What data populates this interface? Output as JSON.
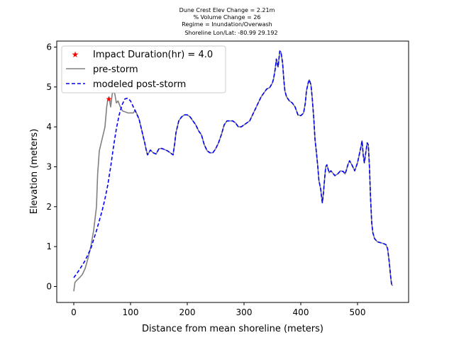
{
  "chart_data": {
    "type": "line",
    "title_lines": [
      "Dune Crest Elev Change = 2.21m",
      "% Volume Change = 26",
      "Regime = Inundation/Overwash",
      "Shoreline Lon/Lat: -80.99 29.192"
    ],
    "xlabel": "Distance from mean shoreline (meters)",
    "ylabel": "Elevation (meters)",
    "xlim": [
      -30,
      590
    ],
    "ylim": [
      -0.4,
      6.15
    ],
    "xticks": [
      0,
      100,
      200,
      300,
      400,
      500
    ],
    "yticks": [
      0,
      1,
      2,
      3,
      4,
      5,
      6
    ],
    "grid": false,
    "legend_position": "top-left",
    "marker": {
      "name": "Impact Duration(hr) = 4.0",
      "x": 62,
      "y": 4.7,
      "color": "#ff0000",
      "symbol": "star"
    },
    "series": [
      {
        "name": "pre-storm",
        "color": "#808080",
        "style": "solid",
        "points": [
          [
            0,
            -0.12
          ],
          [
            2,
            0.1
          ],
          [
            5,
            0.15
          ],
          [
            10,
            0.22
          ],
          [
            15,
            0.3
          ],
          [
            20,
            0.45
          ],
          [
            25,
            0.7
          ],
          [
            30,
            1.0
          ],
          [
            35,
            1.4
          ],
          [
            40,
            2.0
          ],
          [
            42,
            2.8
          ],
          [
            45,
            3.4
          ],
          [
            50,
            3.7
          ],
          [
            55,
            4.0
          ],
          [
            58,
            4.5
          ],
          [
            60,
            4.68
          ],
          [
            62,
            4.75
          ],
          [
            65,
            4.5
          ],
          [
            68,
            4.85
          ],
          [
            72,
            4.85
          ],
          [
            75,
            4.6
          ],
          [
            78,
            4.65
          ],
          [
            82,
            4.5
          ],
          [
            86,
            4.4
          ],
          [
            90,
            4.38
          ],
          [
            95,
            4.35
          ],
          [
            100,
            4.35
          ],
          [
            105,
            4.35
          ],
          [
            108,
            4.42
          ],
          [
            112,
            4.3
          ],
          [
            115,
            4.2
          ],
          [
            120,
            3.9
          ],
          [
            125,
            3.6
          ],
          [
            128,
            3.4
          ],
          [
            130,
            3.3
          ],
          [
            135,
            3.42
          ],
          [
            140,
            3.35
          ],
          [
            145,
            3.32
          ],
          [
            150,
            3.45
          ],
          [
            155,
            3.46
          ],
          [
            160,
            3.43
          ],
          [
            165,
            3.4
          ],
          [
            170,
            3.35
          ],
          [
            175,
            3.3
          ],
          [
            178,
            3.6
          ],
          [
            180,
            3.85
          ],
          [
            185,
            4.15
          ],
          [
            190,
            4.25
          ],
          [
            195,
            4.3
          ],
          [
            200,
            4.3
          ],
          [
            205,
            4.25
          ],
          [
            210,
            4.15
          ],
          [
            215,
            4.05
          ],
          [
            220,
            3.9
          ],
          [
            225,
            3.8
          ],
          [
            230,
            3.55
          ],
          [
            235,
            3.4
          ],
          [
            240,
            3.35
          ],
          [
            245,
            3.35
          ],
          [
            250,
            3.45
          ],
          [
            255,
            3.6
          ],
          [
            260,
            3.8
          ],
          [
            265,
            4.05
          ],
          [
            270,
            4.15
          ],
          [
            275,
            4.15
          ],
          [
            280,
            4.15
          ],
          [
            285,
            4.1
          ],
          [
            290,
            4.0
          ],
          [
            295,
            4.0
          ],
          [
            300,
            4.05
          ],
          [
            305,
            4.1
          ],
          [
            310,
            4.15
          ],
          [
            315,
            4.3
          ],
          [
            320,
            4.45
          ],
          [
            325,
            4.6
          ],
          [
            330,
            4.75
          ],
          [
            335,
            4.85
          ],
          [
            340,
            4.95
          ],
          [
            345,
            4.98
          ],
          [
            350,
            5.1
          ],
          [
            352,
            5.2
          ],
          [
            355,
            5.45
          ],
          [
            357,
            5.7
          ],
          [
            360,
            5.5
          ],
          [
            363,
            5.9
          ],
          [
            365,
            5.88
          ],
          [
            368,
            5.6
          ],
          [
            370,
            5.2
          ],
          [
            372,
            4.9
          ],
          [
            375,
            4.75
          ],
          [
            380,
            4.65
          ],
          [
            385,
            4.6
          ],
          [
            390,
            4.5
          ],
          [
            393,
            4.38
          ],
          [
            395,
            4.3
          ],
          [
            400,
            4.28
          ],
          [
            403,
            4.32
          ],
          [
            405,
            4.35
          ],
          [
            408,
            4.6
          ],
          [
            410,
            4.9
          ],
          [
            413,
            5.1
          ],
          [
            415,
            5.18
          ],
          [
            418,
            5.05
          ],
          [
            420,
            4.75
          ],
          [
            423,
            4.2
          ],
          [
            425,
            3.7
          ],
          [
            428,
            3.3
          ],
          [
            430,
            3.0
          ],
          [
            432,
            2.65
          ],
          [
            435,
            2.45
          ],
          [
            437,
            2.2
          ],
          [
            438,
            2.1
          ],
          [
            440,
            2.35
          ],
          [
            442,
            2.7
          ],
          [
            444,
            3.0
          ],
          [
            446,
            3.05
          ],
          [
            448,
            2.95
          ],
          [
            450,
            2.85
          ],
          [
            453,
            2.9
          ],
          [
            456,
            2.85
          ],
          [
            460,
            2.78
          ],
          [
            465,
            2.82
          ],
          [
            470,
            2.9
          ],
          [
            475,
            2.88
          ],
          [
            478,
            2.82
          ],
          [
            480,
            2.9
          ],
          [
            483,
            3.05
          ],
          [
            486,
            3.15
          ],
          [
            490,
            3.05
          ],
          [
            495,
            2.9
          ],
          [
            500,
            3.1
          ],
          [
            503,
            3.3
          ],
          [
            506,
            3.5
          ],
          [
            508,
            3.65
          ],
          [
            510,
            3.3
          ],
          [
            512,
            3.1
          ],
          [
            515,
            3.4
          ],
          [
            517,
            3.6
          ],
          [
            519,
            3.55
          ],
          [
            521,
            3.0
          ],
          [
            523,
            2.2
          ],
          [
            525,
            1.6
          ],
          [
            527,
            1.35
          ],
          [
            530,
            1.2
          ],
          [
            535,
            1.12
          ],
          [
            540,
            1.1
          ],
          [
            545,
            1.08
          ],
          [
            550,
            1.05
          ],
          [
            553,
            0.95
          ],
          [
            556,
            0.6
          ],
          [
            558,
            0.3
          ],
          [
            560,
            0.05
          ],
          [
            562,
            0.02
          ]
        ]
      },
      {
        "name": "modeled post-storm",
        "color": "#0000ff",
        "style": "dashed",
        "points": [
          [
            0,
            0.22
          ],
          [
            10,
            0.42
          ],
          [
            20,
            0.65
          ],
          [
            30,
            0.95
          ],
          [
            40,
            1.4
          ],
          [
            50,
            1.9
          ],
          [
            55,
            2.2
          ],
          [
            60,
            2.55
          ],
          [
            65,
            3.0
          ],
          [
            70,
            3.5
          ],
          [
            75,
            3.95
          ],
          [
            80,
            4.3
          ],
          [
            85,
            4.55
          ],
          [
            90,
            4.7
          ],
          [
            95,
            4.72
          ],
          [
            100,
            4.65
          ],
          [
            105,
            4.5
          ],
          [
            110,
            4.35
          ],
          [
            115,
            4.2
          ],
          [
            120,
            3.9
          ],
          [
            125,
            3.6
          ],
          [
            128,
            3.4
          ],
          [
            130,
            3.3
          ],
          [
            135,
            3.42
          ],
          [
            140,
            3.35
          ],
          [
            145,
            3.32
          ],
          [
            150,
            3.45
          ],
          [
            155,
            3.46
          ],
          [
            160,
            3.43
          ],
          [
            165,
            3.4
          ],
          [
            170,
            3.35
          ],
          [
            175,
            3.3
          ],
          [
            178,
            3.6
          ],
          [
            180,
            3.85
          ],
          [
            185,
            4.15
          ],
          [
            190,
            4.25
          ],
          [
            195,
            4.3
          ],
          [
            200,
            4.3
          ],
          [
            205,
            4.25
          ],
          [
            210,
            4.15
          ],
          [
            215,
            4.05
          ],
          [
            220,
            3.9
          ],
          [
            225,
            3.8
          ],
          [
            230,
            3.55
          ],
          [
            235,
            3.4
          ],
          [
            240,
            3.35
          ],
          [
            245,
            3.35
          ],
          [
            250,
            3.45
          ],
          [
            255,
            3.6
          ],
          [
            260,
            3.8
          ],
          [
            265,
            4.05
          ],
          [
            270,
            4.15
          ],
          [
            275,
            4.15
          ],
          [
            280,
            4.15
          ],
          [
            285,
            4.1
          ],
          [
            290,
            4.0
          ],
          [
            295,
            4.0
          ],
          [
            300,
            4.05
          ],
          [
            305,
            4.1
          ],
          [
            310,
            4.15
          ],
          [
            315,
            4.3
          ],
          [
            320,
            4.45
          ],
          [
            325,
            4.6
          ],
          [
            330,
            4.75
          ],
          [
            335,
            4.85
          ],
          [
            340,
            4.95
          ],
          [
            345,
            4.98
          ],
          [
            350,
            5.1
          ],
          [
            352,
            5.2
          ],
          [
            355,
            5.45
          ],
          [
            357,
            5.7
          ],
          [
            360,
            5.5
          ],
          [
            363,
            5.9
          ],
          [
            365,
            5.88
          ],
          [
            368,
            5.6
          ],
          [
            370,
            5.2
          ],
          [
            372,
            4.9
          ],
          [
            375,
            4.75
          ],
          [
            380,
            4.65
          ],
          [
            385,
            4.6
          ],
          [
            390,
            4.5
          ],
          [
            393,
            4.38
          ],
          [
            395,
            4.3
          ],
          [
            400,
            4.28
          ],
          [
            403,
            4.32
          ],
          [
            405,
            4.35
          ],
          [
            408,
            4.6
          ],
          [
            410,
            4.9
          ],
          [
            413,
            5.1
          ],
          [
            415,
            5.18
          ],
          [
            418,
            5.05
          ],
          [
            420,
            4.75
          ],
          [
            423,
            4.2
          ],
          [
            425,
            3.7
          ],
          [
            428,
            3.3
          ],
          [
            430,
            3.0
          ],
          [
            432,
            2.65
          ],
          [
            435,
            2.45
          ],
          [
            437,
            2.2
          ],
          [
            438,
            2.1
          ],
          [
            440,
            2.35
          ],
          [
            442,
            2.7
          ],
          [
            444,
            3.0
          ],
          [
            446,
            3.05
          ],
          [
            448,
            2.95
          ],
          [
            450,
            2.85
          ],
          [
            453,
            2.9
          ],
          [
            456,
            2.85
          ],
          [
            460,
            2.78
          ],
          [
            465,
            2.82
          ],
          [
            470,
            2.9
          ],
          [
            475,
            2.88
          ],
          [
            478,
            2.82
          ],
          [
            480,
            2.9
          ],
          [
            483,
            3.05
          ],
          [
            486,
            3.15
          ],
          [
            490,
            3.05
          ],
          [
            495,
            2.9
          ],
          [
            500,
            3.1
          ],
          [
            503,
            3.3
          ],
          [
            506,
            3.5
          ],
          [
            508,
            3.65
          ],
          [
            510,
            3.3
          ],
          [
            512,
            3.1
          ],
          [
            515,
            3.4
          ],
          [
            517,
            3.6
          ],
          [
            519,
            3.55
          ],
          [
            521,
            3.0
          ],
          [
            523,
            2.2
          ],
          [
            525,
            1.6
          ],
          [
            527,
            1.35
          ],
          [
            530,
            1.2
          ],
          [
            535,
            1.12
          ],
          [
            540,
            1.1
          ],
          [
            545,
            1.08
          ],
          [
            550,
            1.05
          ],
          [
            553,
            0.95
          ],
          [
            556,
            0.6
          ],
          [
            558,
            0.3
          ],
          [
            560,
            0.05
          ],
          [
            562,
            0.02
          ]
        ]
      }
    ]
  }
}
